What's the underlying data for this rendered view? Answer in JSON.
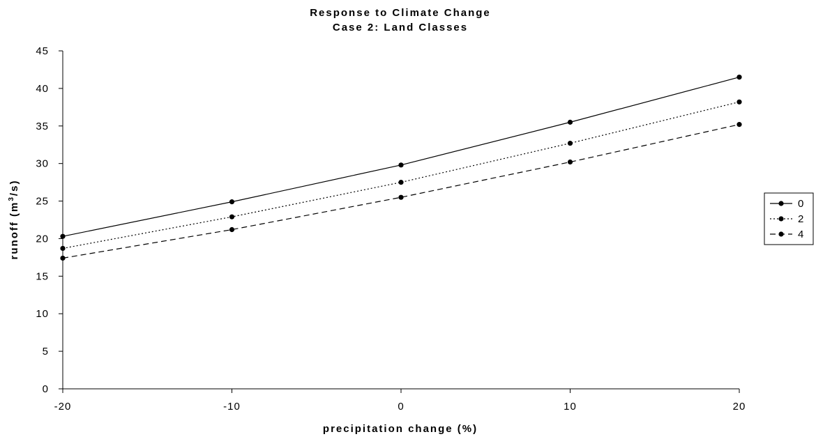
{
  "chart_data": {
    "type": "line",
    "title": "Response to Climate Change",
    "subtitle": "Case 2:  Land Classes",
    "xlabel": "precipitation change (%)",
    "ylabel": "runoff (m³/s)",
    "ylabel_parts": {
      "before": "runoff (m",
      "sup": "3",
      "after": "/s)"
    },
    "x": [
      -20,
      -10,
      0,
      10,
      20
    ],
    "x_tick_labels": [
      "-20",
      "-10",
      "0",
      "10",
      "20"
    ],
    "y_ticks": [
      0,
      5,
      10,
      15,
      20,
      25,
      30,
      35,
      40,
      45
    ],
    "ylim": [
      0,
      45
    ],
    "xlim": [
      -20,
      20
    ],
    "grid": false,
    "legend_position": "right",
    "series": [
      {
        "name": "0",
        "values": [
          20.3,
          24.9,
          29.8,
          35.5,
          41.5
        ],
        "dash": "solid",
        "color": "#000000"
      },
      {
        "name": "2",
        "values": [
          18.7,
          22.9,
          27.5,
          32.7,
          38.2
        ],
        "dash": "dotted",
        "color": "#000000"
      },
      {
        "name": "4",
        "values": [
          17.4,
          21.2,
          25.5,
          30.2,
          35.2
        ],
        "dash": "dashed",
        "color": "#000000"
      }
    ]
  }
}
